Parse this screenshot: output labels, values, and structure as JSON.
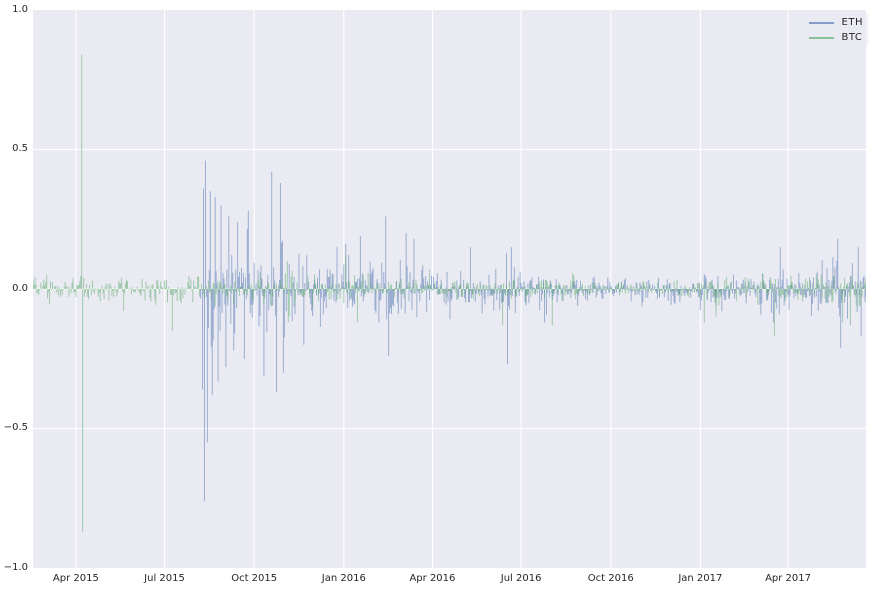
{
  "figure": {
    "background": "#ffffff",
    "axes_background": "#eaeaf2",
    "grid_color": "#ffffff",
    "tick_text_color": "#262626"
  },
  "legend": {
    "entries": [
      {
        "label": "ETH",
        "color": "#4c72b0"
      },
      {
        "label": "BTC",
        "color": "#55a868"
      }
    ],
    "alpha": 0.5,
    "position": "upper right"
  },
  "chart_data": {
    "type": "bar",
    "title": "",
    "xlabel": "",
    "ylabel": "",
    "description": "Daily returns of ETH and BTC plotted as overlapping semi-transparent vertical bars around zero",
    "grid": true,
    "ylim": [
      -1.0,
      1.0
    ],
    "y_ticks": [
      "1.0",
      "0.5",
      "0.0",
      "−0.5",
      "−1.0"
    ],
    "y_tick_values": [
      1.0,
      0.5,
      0.0,
      -0.5,
      -1.0
    ],
    "x_start": "2015-02-16",
    "x_end": "2017-06-20",
    "x_ticks": [
      {
        "label": "Apr 2015",
        "date": "2015-04-01"
      },
      {
        "label": "Jul 2015",
        "date": "2015-07-01"
      },
      {
        "label": "Oct 2015",
        "date": "2015-10-01"
      },
      {
        "label": "Jan 2016",
        "date": "2016-01-01"
      },
      {
        "label": "Apr 2016",
        "date": "2016-04-01"
      },
      {
        "label": "Jul 2016",
        "date": "2016-07-01"
      },
      {
        "label": "Oct 2016",
        "date": "2016-10-01"
      },
      {
        "label": "Jan 2017",
        "date": "2017-01-01"
      },
      {
        "label": "Apr 2017",
        "date": "2017-04-01"
      }
    ],
    "noise_seed": 1337,
    "series": [
      {
        "name": "ETH",
        "color": "#4c72b0",
        "alpha": 0.5,
        "start": "2015-08-07",
        "volatility_by_month": {
          "2015-08": 0.11,
          "2015-09": 0.085,
          "2015-10": 0.08,
          "2015-11": 0.055,
          "2015-12": 0.05,
          "2016-01": 0.055,
          "2016-02": 0.055,
          "2016-03": 0.045,
          "2016-04": 0.03,
          "2016-05": 0.028,
          "2016-06": 0.04,
          "2016-07": 0.035,
          "2016-08": 0.025,
          "2016-09": 0.018,
          "2016-10": 0.018,
          "2016-11": 0.018,
          "2016-12": 0.022,
          "2017-01": 0.028,
          "2017-02": 0.022,
          "2017-03": 0.038,
          "2017-04": 0.032,
          "2017-05": 0.05,
          "2017-06": 0.045
        },
        "notable_points": [
          {
            "date": "2015-08-09",
            "value": -0.36
          },
          {
            "date": "2015-08-10",
            "value": 0.36
          },
          {
            "date": "2015-08-11",
            "value": -0.76
          },
          {
            "date": "2015-08-12",
            "value": 0.46
          },
          {
            "date": "2015-08-14",
            "value": -0.55
          },
          {
            "date": "2015-08-17",
            "value": 0.35
          },
          {
            "date": "2015-08-19",
            "value": -0.38
          },
          {
            "date": "2015-08-22",
            "value": 0.33
          },
          {
            "date": "2015-08-25",
            "value": -0.33
          },
          {
            "date": "2015-08-28",
            "value": 0.3
          },
          {
            "date": "2015-09-02",
            "value": -0.28
          },
          {
            "date": "2015-09-05",
            "value": 0.26
          },
          {
            "date": "2015-09-10",
            "value": -0.22
          },
          {
            "date": "2015-09-14",
            "value": 0.24
          },
          {
            "date": "2015-09-21",
            "value": -0.25
          },
          {
            "date": "2015-09-25",
            "value": 0.28
          },
          {
            "date": "2015-10-19",
            "value": 0.42
          },
          {
            "date": "2015-10-24",
            "value": -0.37
          },
          {
            "date": "2015-10-28",
            "value": 0.38
          },
          {
            "date": "2015-10-31",
            "value": -0.3
          },
          {
            "date": "2015-11-21",
            "value": -0.2
          },
          {
            "date": "2015-12-25",
            "value": 0.15
          },
          {
            "date": "2016-01-18",
            "value": 0.19
          },
          {
            "date": "2016-02-13",
            "value": 0.26
          },
          {
            "date": "2016-02-16",
            "value": -0.24
          },
          {
            "date": "2016-03-05",
            "value": 0.2
          },
          {
            "date": "2016-03-13",
            "value": 0.18
          },
          {
            "date": "2016-05-10",
            "value": 0.15
          },
          {
            "date": "2016-06-16",
            "value": 0.13
          },
          {
            "date": "2016-06-17",
            "value": -0.27
          },
          {
            "date": "2016-06-21",
            "value": 0.15
          },
          {
            "date": "2016-07-25",
            "value": -0.12
          },
          {
            "date": "2017-03-17",
            "value": -0.12
          },
          {
            "date": "2017-03-24",
            "value": 0.15
          },
          {
            "date": "2017-05-22",
            "value": 0.18
          },
          {
            "date": "2017-05-25",
            "value": -0.21
          },
          {
            "date": "2017-06-12",
            "value": 0.15
          },
          {
            "date": "2017-06-15",
            "value": -0.17
          }
        ]
      },
      {
        "name": "BTC",
        "color": "#55a868",
        "alpha": 0.5,
        "start": "2015-02-16",
        "volatility_by_month": {
          "2015-02": 0.022,
          "2015-03": 0.022,
          "2015-04": 0.025,
          "2015-05": 0.018,
          "2015-06": 0.02,
          "2015-07": 0.03,
          "2015-08": 0.022,
          "2015-09": 0.018,
          "2015-10": 0.022,
          "2015-11": 0.032,
          "2015-12": 0.025,
          "2016-01": 0.025,
          "2016-02": 0.018,
          "2016-03": 0.015,
          "2016-04": 0.013,
          "2016-05": 0.015,
          "2016-06": 0.025,
          "2016-07": 0.02,
          "2016-08": 0.02,
          "2016-09": 0.012,
          "2016-10": 0.012,
          "2016-11": 0.012,
          "2016-12": 0.015,
          "2017-01": 0.025,
          "2017-02": 0.015,
          "2017-03": 0.025,
          "2017-04": 0.02,
          "2017-05": 0.028,
          "2017-06": 0.03
        },
        "notable_points": [
          {
            "date": "2015-04-07",
            "value": 0.84
          },
          {
            "date": "2015-04-08",
            "value": -0.87
          },
          {
            "date": "2015-07-09",
            "value": -0.15
          },
          {
            "date": "2015-11-04",
            "value": 0.1
          },
          {
            "date": "2015-11-05",
            "value": -0.12
          },
          {
            "date": "2016-01-15",
            "value": -0.12
          },
          {
            "date": "2016-06-12",
            "value": -0.13
          },
          {
            "date": "2016-08-02",
            "value": -0.13
          },
          {
            "date": "2017-01-05",
            "value": -0.12
          },
          {
            "date": "2017-03-18",
            "value": -0.17
          },
          {
            "date": "2017-05-27",
            "value": -0.12
          }
        ]
      }
    ]
  }
}
